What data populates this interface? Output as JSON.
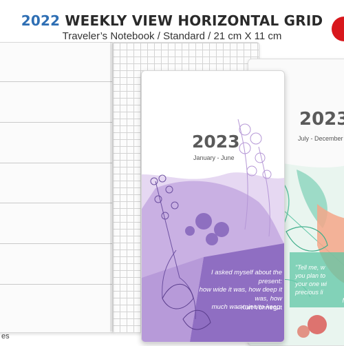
{
  "header": {
    "title_year": "2022",
    "title_rest": "WEEKLY VIEW HORIZONTAL GRID",
    "subtitle": "Traveler’s Notebook / Standard / 21 cm X 11 cm"
  },
  "footer": {
    "text": "es"
  },
  "cover_front": {
    "year": "2023",
    "range": "January - June",
    "quote_lines": [
      "I asked myself about the present:",
      "how wide it was, how deep it was, how",
      "much was mine to keep."
    ],
    "author": "- Kurt Vonnegut"
  },
  "cover_back": {
    "year": "2023",
    "range": "July - December",
    "quote_lines": [
      "\"Tell me, w",
      "you plan to",
      "your one wi",
      "precious li",
      "Mar"
    ]
  },
  "colors": {
    "title_year": "#2f6fb4",
    "brand_red": "#d8171c",
    "purple": "#8f6ec2",
    "lavender": "#cdb3e6",
    "teal": "#5fc5a6",
    "peach": "#f4a688"
  }
}
